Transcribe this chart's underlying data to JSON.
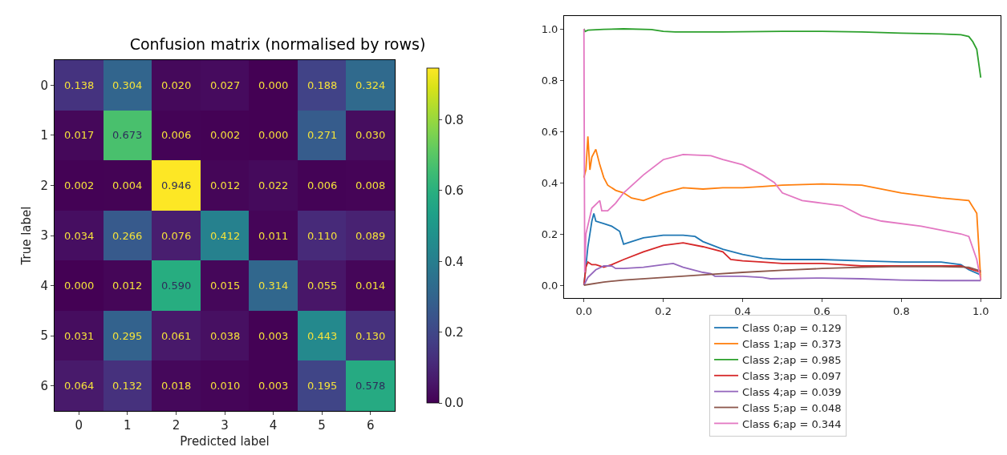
{
  "chart_data": [
    {
      "type": "heatmap",
      "title": "Confusion matrix (normalised by rows)",
      "xlabel": "Predicted label",
      "ylabel": "True label",
      "categories": [
        "0",
        "1",
        "2",
        "3",
        "4",
        "5",
        "6"
      ],
      "y_categories": [
        "0",
        "1",
        "2",
        "3",
        "4",
        "5",
        "6"
      ],
      "cells": [
        [
          0.138,
          0.304,
          0.02,
          0.027,
          0.0,
          0.188,
          0.324
        ],
        [
          0.017,
          0.673,
          0.006,
          0.002,
          0.0,
          0.271,
          0.03
        ],
        [
          0.002,
          0.004,
          0.946,
          0.012,
          0.022,
          0.006,
          0.008
        ],
        [
          0.034,
          0.266,
          0.076,
          0.412,
          0.011,
          0.11,
          0.089
        ],
        [
          0.0,
          0.012,
          0.59,
          0.015,
          0.314,
          0.055,
          0.014
        ],
        [
          0.031,
          0.295,
          0.061,
          0.038,
          0.003,
          0.443,
          0.13
        ],
        [
          0.064,
          0.132,
          0.018,
          0.01,
          0.003,
          0.195,
          0.578
        ]
      ],
      "cell_labels": [
        [
          "0.138",
          "0.304",
          "0.020",
          "0.027",
          "0.000",
          "0.188",
          "0.324"
        ],
        [
          "0.017",
          "0.673",
          "0.006",
          "0.002",
          "0.000",
          "0.271",
          "0.030"
        ],
        [
          "0.002",
          "0.004",
          "0.946",
          "0.012",
          "0.022",
          "0.006",
          "0.008"
        ],
        [
          "0.034",
          "0.266",
          "0.076",
          "0.412",
          "0.011",
          "0.110",
          "0.089"
        ],
        [
          "0.000",
          "0.012",
          "0.590",
          "0.015",
          "0.314",
          "0.055",
          "0.014"
        ],
        [
          "0.031",
          "0.295",
          "0.061",
          "0.038",
          "0.003",
          "0.443",
          "0.130"
        ],
        [
          "0.064",
          "0.132",
          "0.018",
          "0.010",
          "0.003",
          "0.195",
          "0.578"
        ]
      ],
      "clim": [
        0,
        0.946
      ],
      "cticks": [
        {
          "value": 0,
          "label": "0.0"
        },
        {
          "value": 0.2,
          "label": "0.2"
        },
        {
          "value": 0.4,
          "label": "0.4"
        },
        {
          "value": 0.6,
          "label": "0.6"
        },
        {
          "value": 0.8,
          "label": "0.8"
        }
      ]
    },
    {
      "type": "line",
      "legend": "bottom",
      "grid": false,
      "xlim": [
        -0.05,
        1.05
      ],
      "ylim": [
        -0.05,
        1.05
      ],
      "xticks": [
        {
          "value": 0,
          "label": "0.0"
        },
        {
          "value": 0.2,
          "label": "0.2"
        },
        {
          "value": 0.4,
          "label": "0.4"
        },
        {
          "value": 0.6,
          "label": "0.6"
        },
        {
          "value": 0.8,
          "label": "0.8"
        },
        {
          "value": 1,
          "label": "1.0"
        }
      ],
      "yticks": [
        {
          "value": 0,
          "label": "0.0"
        },
        {
          "value": 0.2,
          "label": "0.2"
        },
        {
          "value": 0.4,
          "label": "0.4"
        },
        {
          "value": 0.6,
          "label": "0.6"
        },
        {
          "value": 0.8,
          "label": "0.8"
        },
        {
          "value": 1,
          "label": "1.0"
        }
      ],
      "series": [
        {
          "name": "Class 0;ap = 0.129",
          "color": "#1f77b4",
          "x": [
            0,
            0.01,
            0.02,
            0.025,
            0.03,
            0.05,
            0.07,
            0.09,
            0.1,
            0.12,
            0.15,
            0.2,
            0.25,
            0.28,
            0.3,
            0.35,
            0.4,
            0.45,
            0.5,
            0.6,
            0.7,
            0.8,
            0.9,
            0.95,
            0.97,
            1.0
          ],
          "values": [
            0,
            0.15,
            0.25,
            0.28,
            0.25,
            0.24,
            0.23,
            0.21,
            0.16,
            0.17,
            0.185,
            0.195,
            0.195,
            0.19,
            0.17,
            0.14,
            0.12,
            0.105,
            0.1,
            0.1,
            0.095,
            0.09,
            0.09,
            0.08,
            0.06,
            0.04
          ]
        },
        {
          "name": "Class 1;ap = 0.373",
          "color": "#ff7f0e",
          "x": [
            0,
            0.005,
            0.01,
            0.015,
            0.02,
            0.03,
            0.04,
            0.05,
            0.06,
            0.08,
            0.1,
            0.12,
            0.15,
            0.2,
            0.25,
            0.3,
            0.35,
            0.4,
            0.45,
            0.5,
            0.6,
            0.7,
            0.8,
            0.9,
            0.97,
            0.99,
            1.0
          ],
          "values": [
            0.42,
            0.45,
            0.58,
            0.45,
            0.5,
            0.53,
            0.47,
            0.42,
            0.39,
            0.37,
            0.36,
            0.34,
            0.33,
            0.36,
            0.38,
            0.375,
            0.38,
            0.38,
            0.385,
            0.39,
            0.395,
            0.39,
            0.36,
            0.34,
            0.33,
            0.28,
            0.02
          ]
        },
        {
          "name": "Class 2;ap = 0.985",
          "color": "#2ca02c",
          "x": [
            0,
            0.003,
            0.01,
            0.05,
            0.1,
            0.17,
            0.2,
            0.23,
            0.28,
            0.35,
            0.5,
            0.6,
            0.7,
            0.8,
            0.9,
            0.95,
            0.97,
            0.98,
            0.99,
            1.0
          ],
          "values": [
            1.0,
            0.99,
            0.995,
            0.998,
            1.0,
            0.997,
            0.99,
            0.988,
            0.988,
            0.988,
            0.99,
            0.99,
            0.988,
            0.983,
            0.98,
            0.977,
            0.97,
            0.95,
            0.92,
            0.81
          ]
        },
        {
          "name": "Class 3;ap = 0.097",
          "color": "#d62728",
          "x": [
            0,
            0.005,
            0.01,
            0.02,
            0.03,
            0.05,
            0.07,
            0.1,
            0.15,
            0.2,
            0.25,
            0.3,
            0.35,
            0.37,
            0.4,
            0.45,
            0.5,
            0.6,
            0.65,
            0.7,
            0.8,
            0.9,
            0.95,
            1.0
          ],
          "values": [
            0,
            0.07,
            0.09,
            0.08,
            0.08,
            0.07,
            0.08,
            0.1,
            0.13,
            0.155,
            0.165,
            0.15,
            0.13,
            0.1,
            0.095,
            0.09,
            0.085,
            0.085,
            0.08,
            0.075,
            0.075,
            0.075,
            0.075,
            0.05
          ]
        },
        {
          "name": "Class 4;ap = 0.039",
          "color": "#9467bd",
          "x": [
            0,
            0.01,
            0.03,
            0.05,
            0.07,
            0.08,
            0.1,
            0.15,
            0.2,
            0.225,
            0.25,
            0.3,
            0.32,
            0.33,
            0.4,
            0.45,
            0.47,
            0.6,
            0.7,
            0.8,
            0.9,
            1.0
          ],
          "values": [
            0,
            0.03,
            0.06,
            0.075,
            0.075,
            0.065,
            0.065,
            0.07,
            0.08,
            0.085,
            0.07,
            0.05,
            0.045,
            0.035,
            0.035,
            0.03,
            0.025,
            0.028,
            0.025,
            0.02,
            0.018,
            0.018
          ]
        },
        {
          "name": "Class 5;ap = 0.048",
          "color": "#8c564b",
          "x": [
            0,
            0.05,
            0.1,
            0.2,
            0.3,
            0.4,
            0.5,
            0.6,
            0.7,
            0.8,
            0.9,
            0.97,
            1.0
          ],
          "values": [
            0,
            0.012,
            0.02,
            0.03,
            0.04,
            0.05,
            0.058,
            0.065,
            0.07,
            0.073,
            0.072,
            0.07,
            0.055
          ]
        },
        {
          "name": "Class 6;ap = 0.344",
          "color": "#e377c2",
          "x": [
            0,
            0.002,
            0.005,
            0.02,
            0.04,
            0.045,
            0.06,
            0.08,
            0.1,
            0.15,
            0.2,
            0.25,
            0.32,
            0.35,
            0.4,
            0.45,
            0.48,
            0.5,
            0.55,
            0.6,
            0.65,
            0.7,
            0.75,
            0.85,
            0.95,
            0.97,
            0.99,
            1.0
          ],
          "values": [
            1.0,
            0.05,
            0.2,
            0.3,
            0.33,
            0.29,
            0.29,
            0.32,
            0.36,
            0.43,
            0.49,
            0.51,
            0.505,
            0.49,
            0.47,
            0.43,
            0.4,
            0.36,
            0.33,
            0.32,
            0.31,
            0.27,
            0.25,
            0.23,
            0.2,
            0.19,
            0.1,
            0.02
          ]
        }
      ]
    }
  ]
}
